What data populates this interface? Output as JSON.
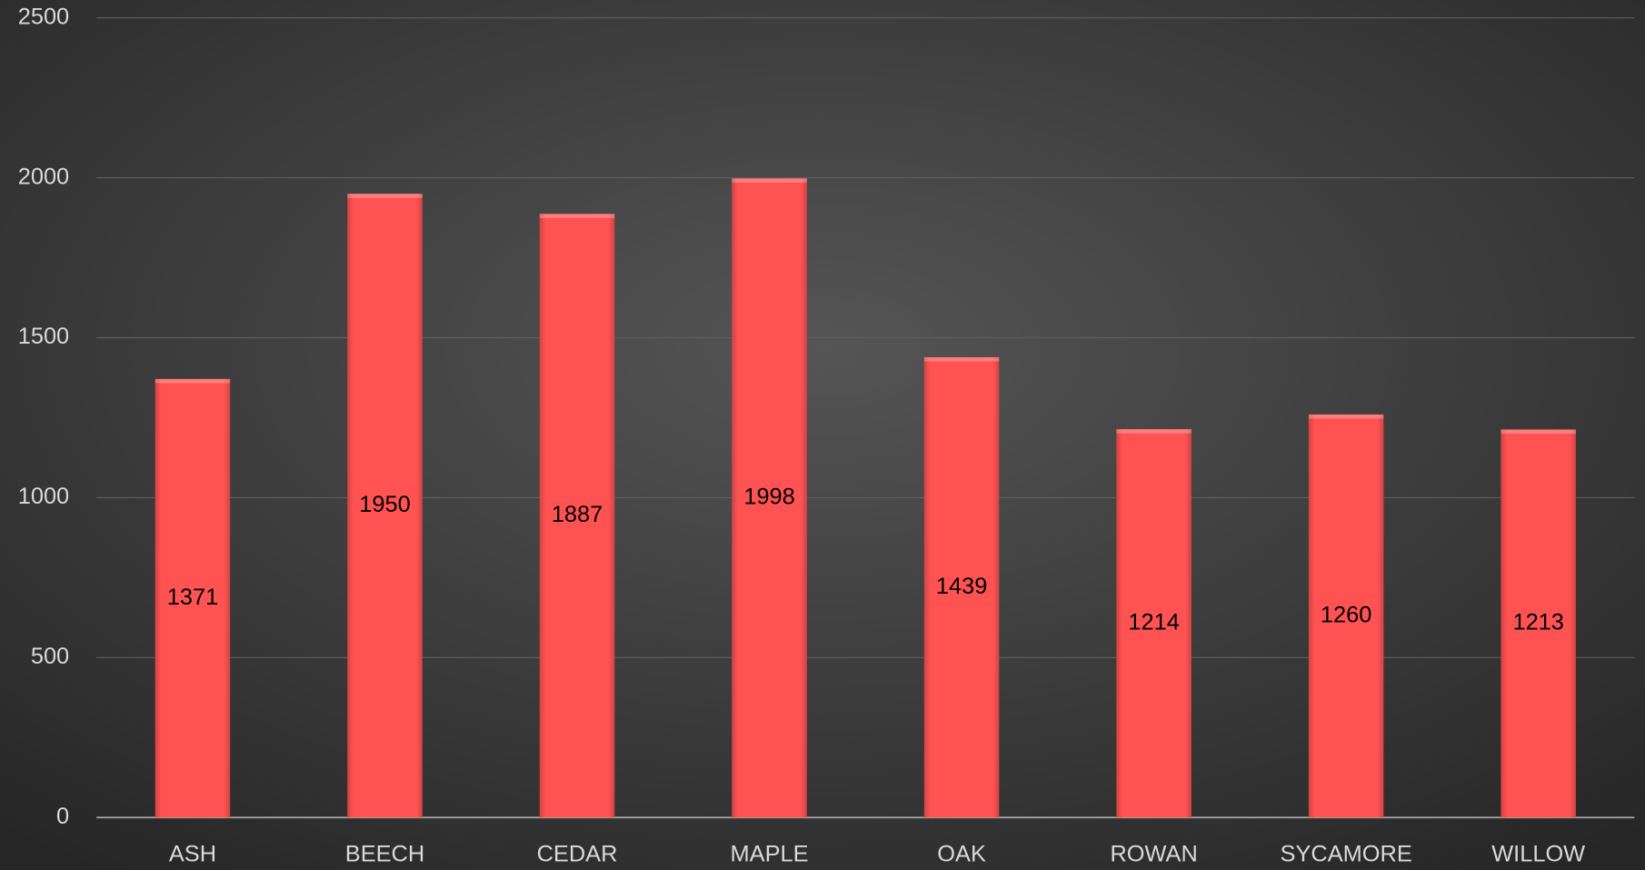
{
  "chart_data": {
    "type": "bar",
    "categories": [
      "ASH",
      "BEECH",
      "CEDAR",
      "MAPLE",
      "OAK",
      "ROWAN",
      "SYCAMORE",
      "WILLOW"
    ],
    "values": [
      1371,
      1950,
      1887,
      1998,
      1439,
      1214,
      1260,
      1213
    ],
    "color": "#ff5252",
    "ylim": [
      0,
      2500
    ],
    "yticks": [
      0,
      500,
      1000,
      1500,
      2000,
      2500
    ],
    "grid": true
  }
}
